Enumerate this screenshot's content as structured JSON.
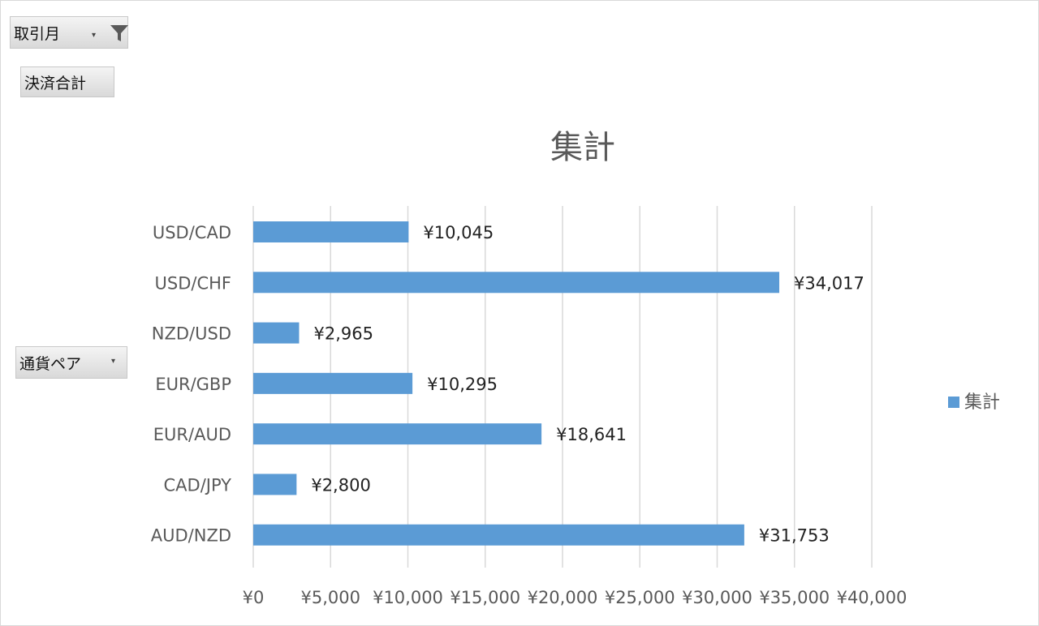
{
  "filters": {
    "month_label": "取引月",
    "value_label": "決済合計",
    "category_label": "通貨ペア"
  },
  "colors": {
    "bar": "#5b9bd5",
    "grid": "#d9d9d9",
    "text": "#595959",
    "title": "#595959"
  },
  "chart_data": {
    "type": "bar",
    "orientation": "horizontal",
    "title": "集計",
    "categories": [
      "USD/CAD",
      "USD/CHF",
      "NZD/USD",
      "EUR/GBP",
      "EUR/AUD",
      "CAD/JPY",
      "AUD/NZD"
    ],
    "series": [
      {
        "name": "集計",
        "values": [
          10045,
          34017,
          2965,
          10295,
          18641,
          2800,
          31753
        ],
        "labels": [
          "¥10,045",
          "¥34,017",
          "¥2,965",
          "¥10,295",
          "¥18,641",
          "¥2,800",
          "¥31,753"
        ]
      }
    ],
    "xlim": [
      0,
      40000
    ],
    "xticks": [
      0,
      5000,
      10000,
      15000,
      20000,
      25000,
      30000,
      35000,
      40000
    ],
    "xtick_labels": [
      "¥0",
      "¥5,000",
      "¥10,000",
      "¥15,000",
      "¥20,000",
      "¥25,000",
      "¥30,000",
      "¥35,000",
      "¥40,000"
    ],
    "grid": true,
    "legend": "right",
    "legend_entries": [
      "集計"
    ]
  }
}
